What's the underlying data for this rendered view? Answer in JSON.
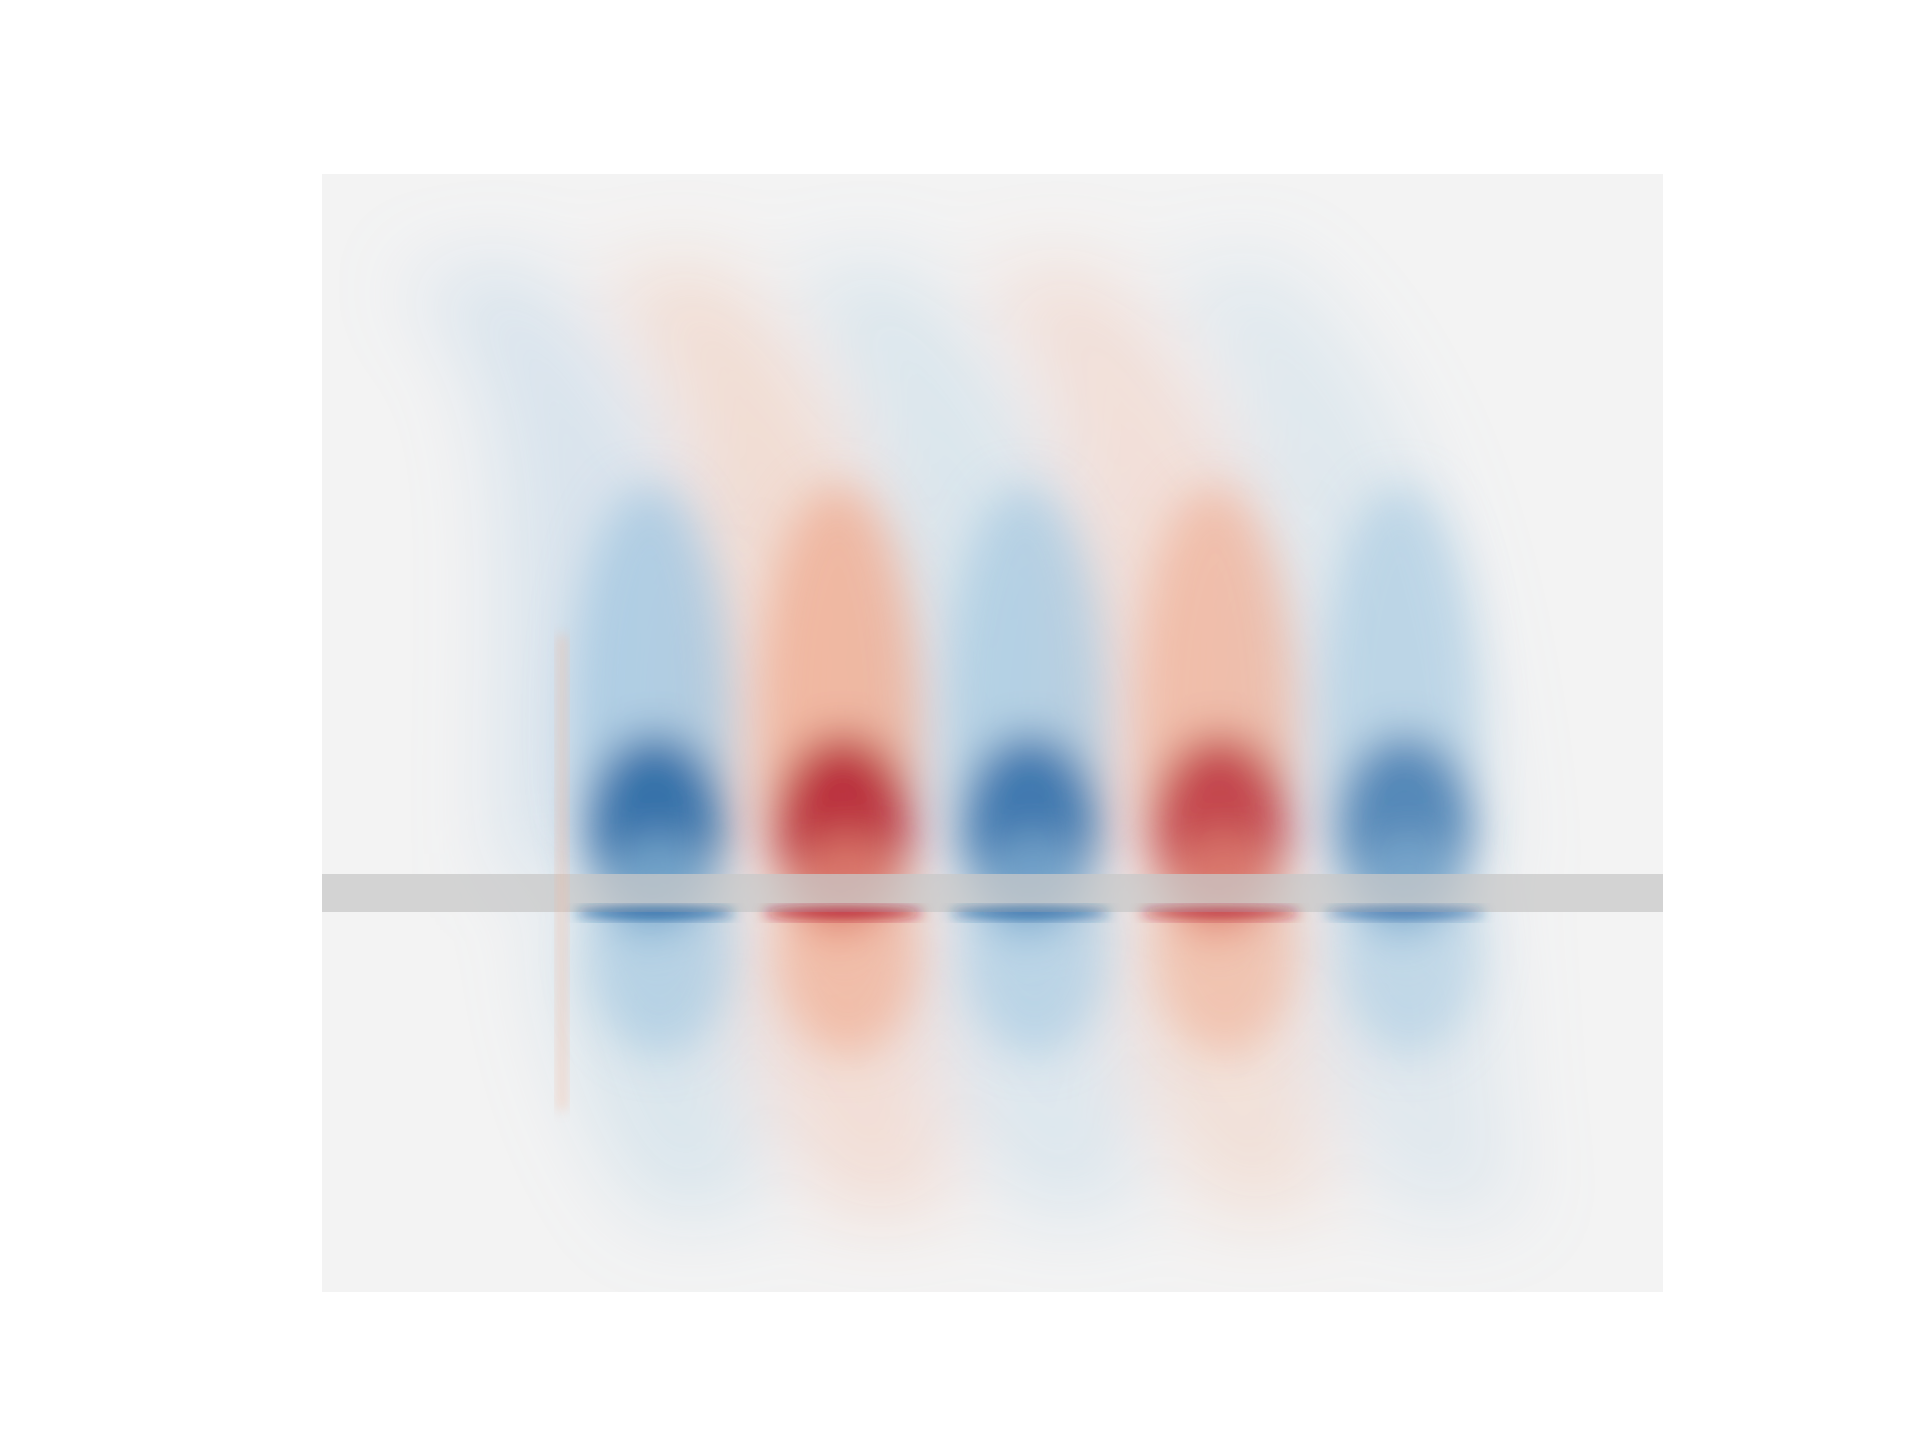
{
  "figure": {
    "description_type": "field-plot",
    "colormap": {
      "name": "RdBu",
      "negative_color": "#1f5fa0",
      "positive_color": "#b2182b",
      "neutral_color": "#f2f2f2"
    },
    "background_color": "#ffffff",
    "plot_background_color": "#f3f3f3",
    "waveguide_band_color": "#c8c8c8",
    "source_line_color": "#f3b79c",
    "lobes": [
      {
        "sign": -1,
        "strength": 1.0
      },
      {
        "sign": 1,
        "strength": 1.0
      },
      {
        "sign": -1,
        "strength": 0.92
      },
      {
        "sign": 1,
        "strength": 0.86
      },
      {
        "sign": -1,
        "strength": 0.78
      }
    ]
  }
}
